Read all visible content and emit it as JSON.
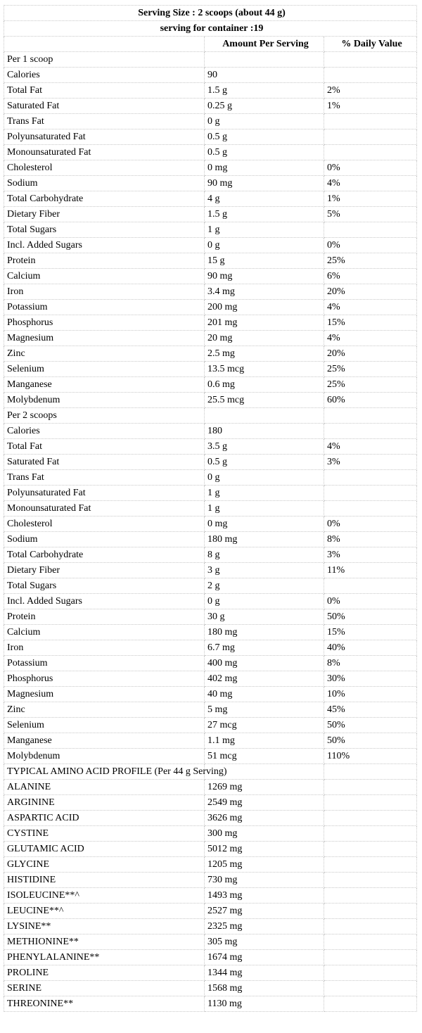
{
  "header": {
    "serving_size": "Serving Size : 2 scoops (about 44 g)",
    "servings_per_container": "serving for container :19",
    "col_amount": "Amount Per Serving",
    "col_dv": "% Daily Value"
  },
  "rows": [
    {
      "name": "Per 1 scoop",
      "amount": "",
      "dv": ""
    },
    {
      "name": "Calories",
      "amount": "90",
      "dv": ""
    },
    {
      "name": "Total Fat",
      "amount": "1.5 g",
      "dv": "2%"
    },
    {
      "name": "Saturated Fat",
      "amount": "0.25 g",
      "dv": "1%"
    },
    {
      "name": "Trans Fat",
      "amount": "0 g",
      "dv": ""
    },
    {
      "name": "Polyunsaturated Fat",
      "amount": "0.5 g",
      "dv": ""
    },
    {
      "name": "Monounsaturated Fat",
      "amount": "0.5 g",
      "dv": ""
    },
    {
      "name": "Cholesterol",
      "amount": "0 mg",
      "dv": "0%"
    },
    {
      "name": "Sodium",
      "amount": "90 mg",
      "dv": "4%"
    },
    {
      "name": "Total Carbohydrate",
      "amount": "4 g",
      "dv": "1%"
    },
    {
      "name": "Dietary Fiber",
      "amount": "1.5 g",
      "dv": "5%"
    },
    {
      "name": "Total Sugars",
      "amount": "1 g",
      "dv": ""
    },
    {
      "name": "Incl. Added Sugars",
      "amount": "0 g",
      "dv": "0%"
    },
    {
      "name": "Protein",
      "amount": "15 g",
      "dv": "25%"
    },
    {
      "name": "Calcium",
      "amount": "90 mg",
      "dv": "6%"
    },
    {
      "name": "Iron",
      "amount": "3.4 mg",
      "dv": "20%"
    },
    {
      "name": "Potassium",
      "amount": "200 mg",
      "dv": "4%"
    },
    {
      "name": "Phosphorus",
      "amount": "201 mg",
      "dv": "15%"
    },
    {
      "name": "Magnesium",
      "amount": "20 mg",
      "dv": "4%"
    },
    {
      "name": "Zinc",
      "amount": "2.5 mg",
      "dv": "20%"
    },
    {
      "name": "Selenium",
      "amount": "13.5 mcg",
      "dv": "25%"
    },
    {
      "name": "Manganese",
      "amount": "0.6 mg",
      "dv": "25%"
    },
    {
      "name": "Molybdenum",
      "amount": "25.5 mcg",
      "dv": "60%"
    },
    {
      "name": "Per 2 scoops",
      "amount": "",
      "dv": ""
    },
    {
      "name": "Calories",
      "amount": "180",
      "dv": ""
    },
    {
      "name": "Total Fat",
      "amount": "3.5 g",
      "dv": "4%"
    },
    {
      "name": "Saturated Fat",
      "amount": "0.5 g",
      "dv": "3%"
    },
    {
      "name": "Trans Fat",
      "amount": "0 g",
      "dv": ""
    },
    {
      "name": "Polyunsaturated Fat",
      "amount": "1 g",
      "dv": ""
    },
    {
      "name": "Monounsaturated Fat",
      "amount": "1 g",
      "dv": ""
    },
    {
      "name": "Cholesterol",
      "amount": "0 mg",
      "dv": "0%"
    },
    {
      "name": "Sodium",
      "amount": "180 mg",
      "dv": "8%"
    },
    {
      "name": "Total Carbohydrate",
      "amount": "8 g",
      "dv": "3%"
    },
    {
      "name": "Dietary Fiber",
      "amount": "3 g",
      "dv": "11%"
    },
    {
      "name": "Total Sugars",
      "amount": "2 g",
      "dv": ""
    },
    {
      "name": "Incl. Added Sugars",
      "amount": "0 g",
      "dv": "0%"
    },
    {
      "name": "Protein",
      "amount": "30 g",
      "dv": "50%"
    },
    {
      "name": "Calcium",
      "amount": "180 mg",
      "dv": "15%"
    },
    {
      "name": "Iron",
      "amount": "6.7 mg",
      "dv": "40%"
    },
    {
      "name": "Potassium",
      "amount": "400 mg",
      "dv": "8%"
    },
    {
      "name": "Phosphorus",
      "amount": "402 mg",
      "dv": "30%"
    },
    {
      "name": "Magnesium",
      "amount": "40 mg",
      "dv": "10%"
    },
    {
      "name": "Zinc",
      "amount": "5 mg",
      "dv": "45%"
    },
    {
      "name": "Selenium",
      "amount": "27 mcg",
      "dv": "50%"
    },
    {
      "name": "Manganese",
      "amount": "1.1 mg",
      "dv": "50%"
    },
    {
      "name": "Molybdenum",
      "amount": "51 mcg",
      "dv": "110%"
    },
    {
      "name": "TYPICAL AMINO ACID PROFILE (Per 44 g Serving)",
      "amount": "",
      "dv": "",
      "wrap": true
    },
    {
      "name": "ALANINE",
      "amount": "1269 mg",
      "dv": ""
    },
    {
      "name": "ARGININE",
      "amount": "2549 mg",
      "dv": ""
    },
    {
      "name": "ASPARTIC ACID",
      "amount": "3626 mg",
      "dv": ""
    },
    {
      "name": "CYSTINE",
      "amount": "300 mg",
      "dv": ""
    },
    {
      "name": "GLUTAMIC ACID",
      "amount": "5012 mg",
      "dv": ""
    },
    {
      "name": "GLYCINE",
      "amount": "1205 mg",
      "dv": ""
    },
    {
      "name": "HISTIDINE",
      "amount": "730 mg",
      "dv": ""
    },
    {
      "name": "ISOLEUCINE**^",
      "amount": "1493 mg",
      "dv": ""
    },
    {
      "name": "LEUCINE**^",
      "amount": "2527 mg",
      "dv": ""
    },
    {
      "name": "LYSINE**",
      "amount": "2325 mg",
      "dv": ""
    },
    {
      "name": "METHIONINE**",
      "amount": "305 mg",
      "dv": ""
    },
    {
      "name": "PHENYLALANINE**",
      "amount": "1674 mg",
      "dv": ""
    },
    {
      "name": "PROLINE",
      "amount": "1344 mg",
      "dv": ""
    },
    {
      "name": "SERINE",
      "amount": "1568 mg",
      "dv": ""
    },
    {
      "name": "THREONINE**",
      "amount": "1130 mg",
      "dv": ""
    }
  ]
}
